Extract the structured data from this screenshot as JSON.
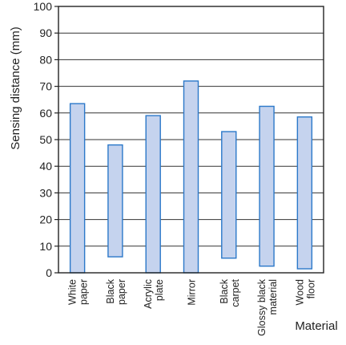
{
  "chart_data": {
    "type": "bar",
    "kind": "floating-range",
    "ylabel": "Sensing distance (mm)",
    "xlabel": "Material",
    "ylim": [
      0,
      100
    ],
    "yticks": [
      0,
      10,
      20,
      30,
      40,
      50,
      60,
      70,
      80,
      90,
      100
    ],
    "grid": true,
    "categories": [
      {
        "lines": [
          "White",
          "paper"
        ],
        "min": 0,
        "max": 63.5
      },
      {
        "lines": [
          "Black",
          "paper"
        ],
        "min": 6,
        "max": 48
      },
      {
        "lines": [
          "Acrylic",
          "plate"
        ],
        "min": 0,
        "max": 59
      },
      {
        "lines": [
          "Mirror"
        ],
        "min": 0,
        "max": 72
      },
      {
        "lines": [
          "Black",
          "carpet"
        ],
        "min": 5.5,
        "max": 53
      },
      {
        "lines": [
          "Glossy black",
          "material"
        ],
        "min": 2.5,
        "max": 62.5
      },
      {
        "lines": [
          "Wood",
          "floor"
        ],
        "min": 1.5,
        "max": 58.5
      }
    ],
    "colors": {
      "bar_fill": "#c5d3ee",
      "bar_stroke": "#2b78c9",
      "axis": "#222222",
      "grid": "#333333"
    }
  }
}
